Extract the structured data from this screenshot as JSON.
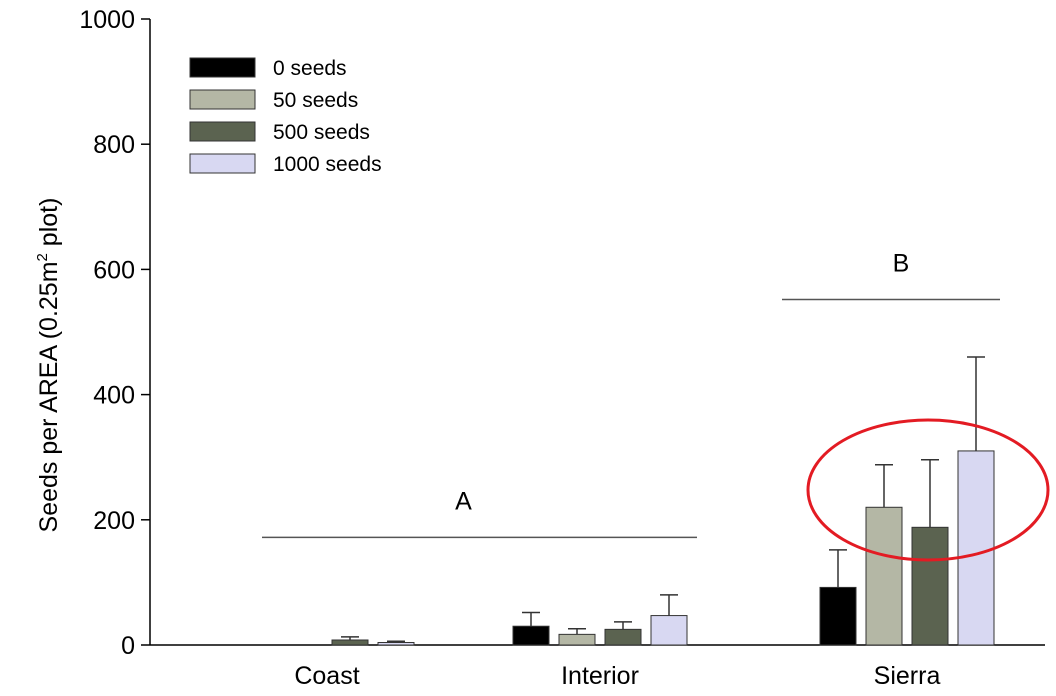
{
  "chart_data": {
    "type": "bar",
    "categories": [
      "Coast",
      "Interior",
      "Sierra"
    ],
    "series": [
      {
        "name": "0 seeds",
        "color": "#000000",
        "values": [
          0,
          30,
          92
        ],
        "errors": [
          0,
          22,
          60
        ]
      },
      {
        "name": "50 seeds",
        "color": "#b4b7a5",
        "values": [
          0,
          17,
          220
        ],
        "errors": [
          0,
          9,
          68
        ]
      },
      {
        "name": "500 seeds",
        "color": "#5b6350",
        "values": [
          8,
          25,
          188
        ],
        "errors": [
          5,
          12,
          108
        ]
      },
      {
        "name": "1000 seeds",
        "color": "#d8d8f2",
        "values": [
          4,
          47,
          310
        ],
        "errors": [
          2,
          33,
          150
        ]
      }
    ],
    "ylabel_main": "Seeds per AREA (0.25m",
    "ylabel_sup": "2",
    "ylabel_tail": " plot)",
    "ylim": [
      0,
      1000
    ],
    "yticks": [
      "0",
      "200",
      "400",
      "600",
      "800",
      "1000"
    ],
    "legend_position": "top-left",
    "grid": false,
    "annotations": [
      {
        "letter": "A",
        "value": 172,
        "from_category": 0,
        "to_category": 1
      },
      {
        "letter": "B",
        "value": 552,
        "from_category": 2,
        "to_category": 2
      }
    ],
    "highlight": {
      "shape": "ellipse",
      "color": "#e31b23",
      "around_category": "Sierra"
    }
  }
}
